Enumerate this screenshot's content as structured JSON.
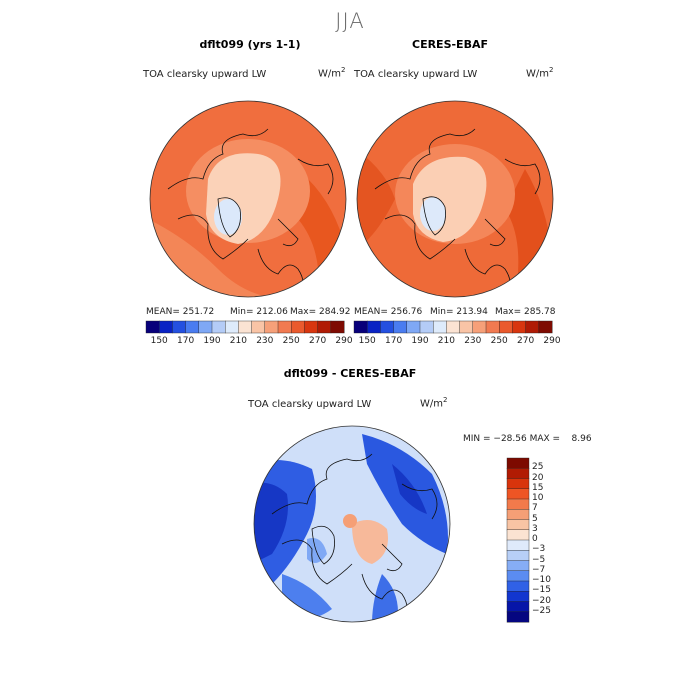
{
  "title": "JJA",
  "panels": [
    {
      "title": "dflt099 (yrs 1-1)",
      "variable": "TOA clearsky upward LW",
      "units": "W/m",
      "units_exp": "2",
      "stats": {
        "mean": "MEAN= 251.72",
        "min": "Min= 212.06",
        "max": "Max= 284.92"
      }
    },
    {
      "title": "CERES-EBAF",
      "variable": "TOA clearsky upward LW",
      "units": "W/m",
      "units_exp": "2",
      "stats": {
        "mean": "MEAN= 256.76",
        "min": "Min= 213.94",
        "max": "Max= 285.78"
      }
    },
    {
      "title": "dflt099 - CERES-EBAF",
      "variable": "TOA clearsky upward LW",
      "units": "W/m",
      "units_exp": "2",
      "stats": {
        "minmax": "MIN = −28.56 MAX =    8.96"
      }
    }
  ],
  "colorbar_main": {
    "ticks": [
      "150",
      "170",
      "190",
      "210",
      "230",
      "250",
      "270",
      "290"
    ],
    "colors": [
      "#08007a",
      "#0a23c4",
      "#2450e0",
      "#4a7cf0",
      "#7fa8f5",
      "#b4ccf7",
      "#deebfb",
      "#fbe3d3",
      "#f9c4a6",
      "#f6a079",
      "#f17a51",
      "#ea5a2d",
      "#d8360f",
      "#b01b05",
      "#7e0b02"
    ]
  },
  "colorbar_diff": {
    "labels": [
      "25",
      "20",
      "15",
      "10",
      "7",
      "5",
      "3",
      "0",
      "−3",
      "−5",
      "−7",
      "−10",
      "−15",
      "−20",
      "−25"
    ],
    "colors": [
      "#7d0a00",
      "#b11b03",
      "#d8340c",
      "#ee5524",
      "#f27a4b",
      "#f59f76",
      "#f8c4a4",
      "#fbe3d2",
      "#dfeafb",
      "#b7cff7",
      "#86adf5",
      "#5b8cf1",
      "#3061e6",
      "#1236cf",
      "#0615a8",
      "#050680"
    ]
  },
  "colors": {
    "map_mean_base": "#f06e3e",
    "map_mean_dark": "#e8531f",
    "map_mean_light": "#f8a57c",
    "map_mean_pale": "#fbd6bf",
    "map_mean_ice": "#dbe8fa",
    "diff_base": "#cfdff9",
    "diff_blue": "#2f5de3",
    "diff_darkblue": "#1637c5",
    "diff_orange": "#f7b99a",
    "coast": "#111111"
  }
}
